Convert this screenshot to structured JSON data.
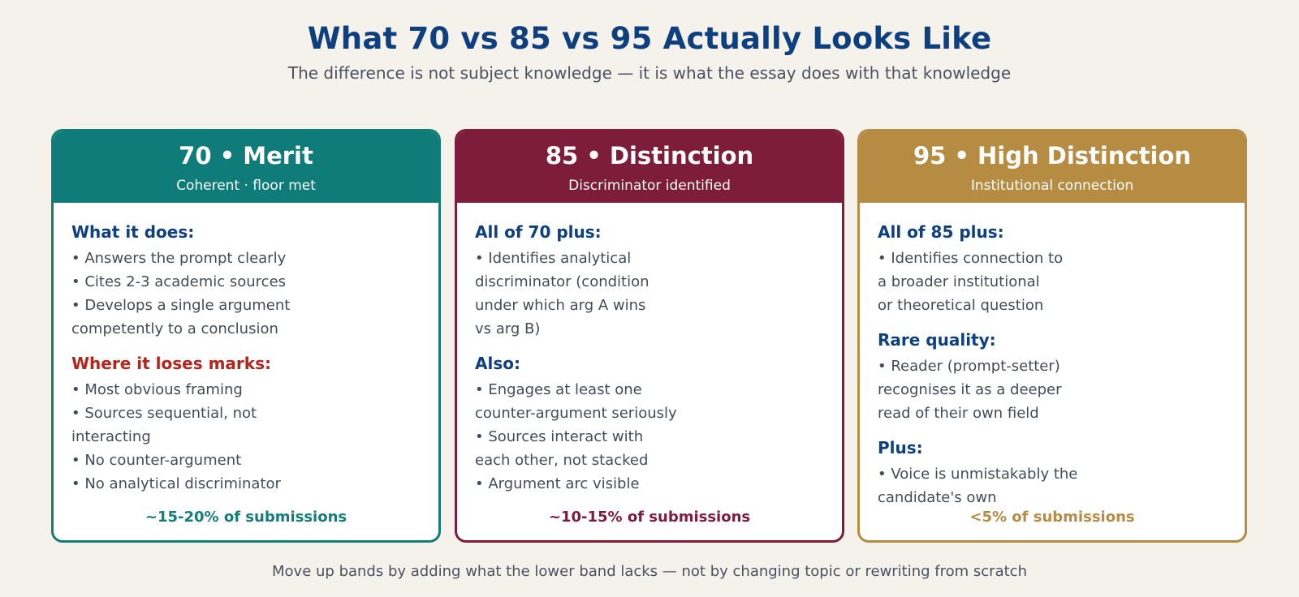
{
  "header": {
    "title": "What 70 vs 85 vs 95 Actually Looks Like",
    "subtitle": "The difference is not subject knowledge — it is what the essay does with that knowledge"
  },
  "colors": {
    "merit": "#0f7c79",
    "distinction": "#7e1c3b",
    "high_distinction": "#b68b42",
    "heading_blue": "#0e3f7e",
    "heading_red": "#b3261e"
  },
  "cards": [
    {
      "title": "70 • Merit",
      "subtitle": "Coherent · floor met",
      "sections": [
        {
          "heading": "What it does:",
          "lines": [
            "• Answers the prompt clearly",
            "• Cites 2-3 academic sources",
            "• Develops a single argument",
            "competently to a conclusion"
          ]
        },
        {
          "heading": "Where it loses marks:",
          "lines": [
            "• Most obvious framing",
            "• Sources sequential, not",
            "interacting",
            "• No counter-argument",
            "• No analytical discriminator"
          ]
        }
      ],
      "share": "~15-20% of submissions"
    },
    {
      "title": "85 • Distinction",
      "subtitle": "Discriminator identified",
      "sections": [
        {
          "heading": "All of 70 plus:",
          "lines": [
            "• Identifies analytical",
            "discriminator (condition",
            "under which arg A wins",
            "vs arg B)"
          ]
        },
        {
          "heading": "Also:",
          "lines": [
            "• Engages at least one",
            "counter-argument seriously",
            "• Sources interact with",
            "each other, not stacked",
            "• Argument arc visible"
          ]
        }
      ],
      "share": "~10-15% of submissions"
    },
    {
      "title": "95 • High Distinction",
      "subtitle": "Institutional connection",
      "sections": [
        {
          "heading": "All of 85 plus:",
          "lines": [
            "• Identifies connection to",
            "a broader institutional",
            "or theoretical question"
          ]
        },
        {
          "heading": "Rare quality:",
          "lines": [
            "• Reader (prompt-setter)",
            "recognises it as a deeper",
            "read of their own field"
          ]
        },
        {
          "heading": "Plus:",
          "lines": [
            "• Voice is unmistakably the",
            "candidate's own"
          ]
        }
      ],
      "share": "<5% of submissions"
    }
  ],
  "footer": "Move up bands by adding what the lower band lacks — not by changing topic or rewriting from scratch"
}
